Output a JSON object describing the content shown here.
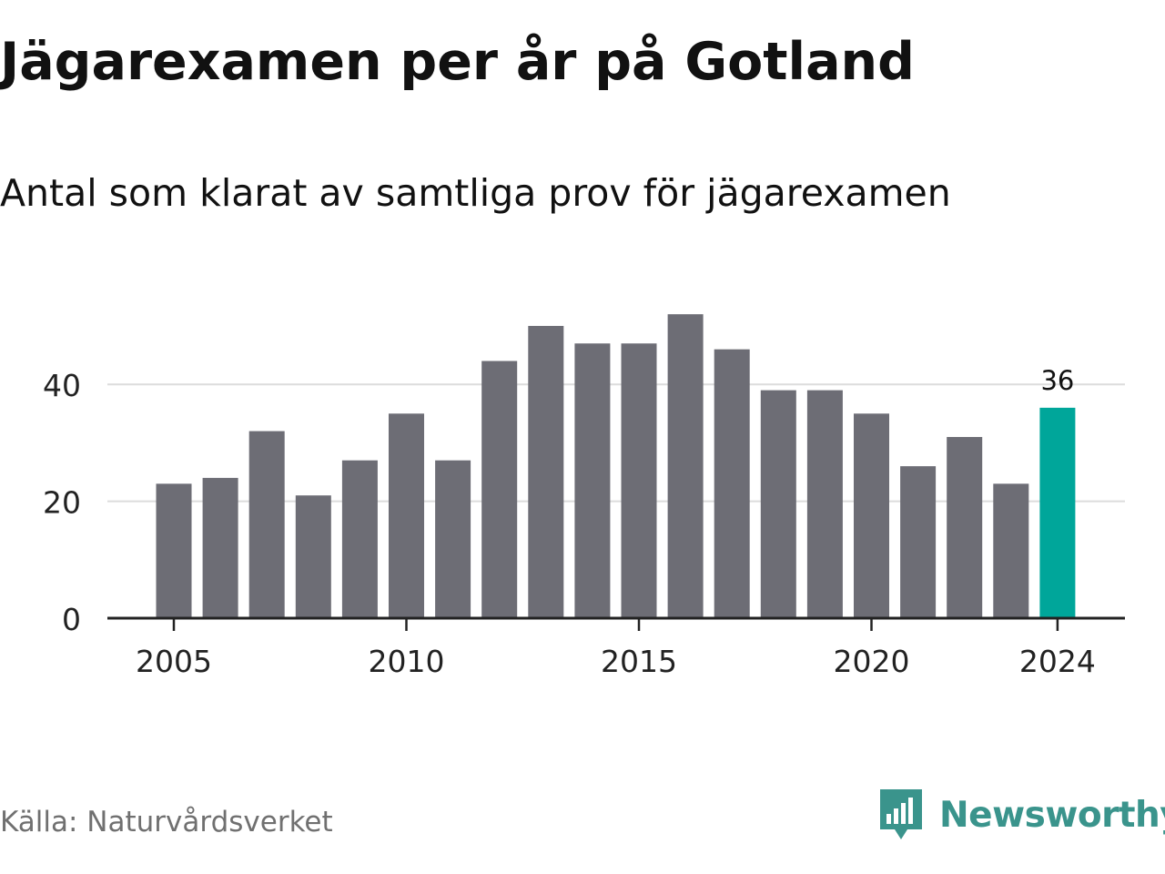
{
  "title": "Jägarexamen per år på Gotland",
  "subtitle": "Antal som klarat av samtliga prov för jägarexamen",
  "source": "Källa: Naturvårdsverket",
  "brand": {
    "name": "Newsworthy",
    "icon": "newsworthy-logo-icon",
    "color": "#3a948c"
  },
  "colors": {
    "bar": "#6d6d75",
    "highlight": "#00a69a",
    "grid": "#dcdcdc",
    "axis": "#222222",
    "text": "#222222"
  },
  "chart_data": {
    "type": "bar",
    "title": "Jägarexamen per år på Gotland",
    "subtitle": "Antal som klarat av samtliga prov för jägarexamen",
    "xlabel": "",
    "ylabel": "",
    "ylim": [
      0,
      52
    ],
    "yticks": [
      0,
      20,
      40
    ],
    "xticks": [
      2005,
      2010,
      2015,
      2020,
      2024
    ],
    "grid": true,
    "categories": [
      2005,
      2006,
      2007,
      2008,
      2009,
      2010,
      2011,
      2012,
      2013,
      2014,
      2015,
      2016,
      2017,
      2018,
      2019,
      2020,
      2021,
      2022,
      2023,
      2024
    ],
    "values": [
      23,
      24,
      32,
      21,
      27,
      35,
      27,
      44,
      50,
      47,
      47,
      52,
      46,
      39,
      39,
      35,
      26,
      31,
      23,
      36
    ],
    "highlight": {
      "category": 2024,
      "label": "36"
    }
  }
}
